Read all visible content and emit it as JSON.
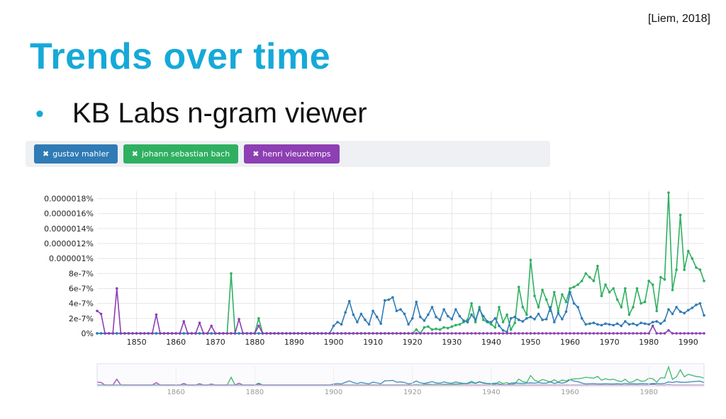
{
  "slide": {
    "citation": "[Liem, 2018]",
    "title": "Trends over time",
    "bullet": "KB Labs n-gram viewer"
  },
  "tags": [
    {
      "label": "gustav mahler",
      "remove_icon": "close-icon",
      "color": "#2f7bb6"
    },
    {
      "label": "johann sebastian bach",
      "remove_icon": "close-icon",
      "color": "#2fb061"
    },
    {
      "label": "henri vieuxtemps",
      "remove_icon": "close-icon",
      "color": "#8d3fb3"
    }
  ],
  "chart_data": {
    "type": "line",
    "xlim": [
      1840,
      1994
    ],
    "ylim": [
      0,
      1.9e-06
    ],
    "y_ticks": [
      0,
      2e-07,
      4e-07,
      6e-07,
      8e-07,
      1e-06,
      1.2e-06,
      1.4e-06,
      1.6e-06,
      1.8e-06
    ],
    "y_tick_labels": [
      "0%",
      "2e-7%",
      "4e-7%",
      "6e-7%",
      "8e-7%",
      "0.000001%",
      "0.0000012%",
      "0.0000014%",
      "0.0000016%",
      "0.0000018%"
    ],
    "x_ticks": [
      1850,
      1860,
      1870,
      1880,
      1890,
      1900,
      1910,
      1920,
      1930,
      1940,
      1950,
      1960,
      1970,
      1980,
      1990
    ],
    "x_tick_labels": [
      "1850",
      "1860",
      "1870",
      "1880",
      "1890",
      "1900",
      "1910",
      "1920",
      "1930",
      "1940",
      "1950",
      "1960",
      "1970",
      "1980",
      "1990"
    ],
    "navigator_ticks": [
      1860,
      1880,
      1900,
      1920,
      1940,
      1960,
      1980
    ],
    "navigator_tick_labels": [
      "1860",
      "1880",
      "1900",
      "1920",
      "1940",
      "1960",
      "1980"
    ],
    "grid": true,
    "series": [
      {
        "name": "gustav mahler",
        "color": "#2f7bb6",
        "points": [
          [
            1840,
            0
          ],
          [
            1899,
            0
          ],
          [
            1900,
            1e-07
          ],
          [
            1901,
            1.5e-07
          ],
          [
            1902,
            1.2e-07
          ],
          [
            1903,
            2.8e-07
          ],
          [
            1904,
            4.3e-07
          ],
          [
            1905,
            2.5e-07
          ],
          [
            1906,
            1.5e-07
          ],
          [
            1907,
            2.6e-07
          ],
          [
            1908,
            1.8e-07
          ],
          [
            1909,
            1.2e-07
          ],
          [
            1910,
            3e-07
          ],
          [
            1911,
            2.2e-07
          ],
          [
            1912,
            1.3e-07
          ],
          [
            1913,
            4.4e-07
          ],
          [
            1914,
            4.5e-07
          ],
          [
            1915,
            4.8e-07
          ],
          [
            1916,
            3e-07
          ],
          [
            1917,
            3.2e-07
          ],
          [
            1918,
            2.6e-07
          ],
          [
            1919,
            1.2e-07
          ],
          [
            1920,
            2e-07
          ],
          [
            1921,
            4.2e-07
          ],
          [
            1922,
            2.2e-07
          ],
          [
            1923,
            1.7e-07
          ],
          [
            1924,
            2.5e-07
          ],
          [
            1925,
            3.5e-07
          ],
          [
            1926,
            2.2e-07
          ],
          [
            1927,
            1.8e-07
          ],
          [
            1928,
            3.2e-07
          ],
          [
            1929,
            2.3e-07
          ],
          [
            1930,
            1.9e-07
          ],
          [
            1931,
            3.2e-07
          ],
          [
            1932,
            2.3e-07
          ],
          [
            1933,
            1.7e-07
          ],
          [
            1934,
            1.5e-07
          ],
          [
            1935,
            2.5e-07
          ],
          [
            1936,
            1.8e-07
          ],
          [
            1937,
            3.2e-07
          ],
          [
            1938,
            2.3e-07
          ],
          [
            1939,
            1.6e-07
          ],
          [
            1940,
            1.5e-07
          ],
          [
            1941,
            2e-07
          ],
          [
            1942,
            1e-07
          ],
          [
            1943,
            4e-08
          ],
          [
            1944,
            2e-08
          ],
          [
            1945,
            2e-07
          ],
          [
            1946,
            2.2e-07
          ],
          [
            1947,
            1.8e-07
          ],
          [
            1948,
            1.6e-07
          ],
          [
            1949,
            2e-07
          ],
          [
            1950,
            2.2e-07
          ],
          [
            1951,
            1.9e-07
          ],
          [
            1952,
            2.6e-07
          ],
          [
            1953,
            1.8e-07
          ],
          [
            1954,
            1.9e-07
          ],
          [
            1955,
            3.5e-07
          ],
          [
            1956,
            1.5e-07
          ],
          [
            1957,
            2.7e-07
          ],
          [
            1958,
            1.9e-07
          ],
          [
            1959,
            2.9e-07
          ],
          [
            1960,
            5.5e-07
          ],
          [
            1961,
            4e-07
          ],
          [
            1962,
            3.5e-07
          ],
          [
            1963,
            2e-07
          ],
          [
            1964,
            1.2e-07
          ],
          [
            1965,
            1.3e-07
          ],
          [
            1966,
            1.4e-07
          ],
          [
            1967,
            1.2e-07
          ],
          [
            1968,
            1.1e-07
          ],
          [
            1969,
            1.3e-07
          ],
          [
            1970,
            1.2e-07
          ],
          [
            1971,
            1.1e-07
          ],
          [
            1972,
            1.3e-07
          ],
          [
            1973,
            1e-07
          ],
          [
            1974,
            1.6e-07
          ],
          [
            1975,
            1.2e-07
          ],
          [
            1976,
            1.3e-07
          ],
          [
            1977,
            1.1e-07
          ],
          [
            1978,
            1.4e-07
          ],
          [
            1979,
            1.3e-07
          ],
          [
            1980,
            1.2e-07
          ],
          [
            1981,
            1.5e-07
          ],
          [
            1982,
            1.6e-07
          ],
          [
            1983,
            1.3e-07
          ],
          [
            1984,
            1.7e-07
          ],
          [
            1985,
            3.2e-07
          ],
          [
            1986,
            2.6e-07
          ],
          [
            1987,
            3.5e-07
          ],
          [
            1988,
            2.9e-07
          ],
          [
            1989,
            2.7e-07
          ],
          [
            1990,
            3.1e-07
          ],
          [
            1991,
            3.4e-07
          ],
          [
            1992,
            3.8e-07
          ],
          [
            1993,
            4e-07
          ],
          [
            1994,
            2.4e-07
          ]
        ]
      },
      {
        "name": "johann sebastian bach",
        "color": "#2fb061",
        "points": [
          [
            1840,
            0
          ],
          [
            1873,
            0
          ],
          [
            1874,
            8e-07
          ],
          [
            1875,
            0
          ],
          [
            1880,
            0
          ],
          [
            1881,
            2e-07
          ],
          [
            1882,
            0
          ],
          [
            1920,
            0
          ],
          [
            1921,
            5e-08
          ],
          [
            1922,
            0
          ],
          [
            1923,
            8e-08
          ],
          [
            1924,
            9e-08
          ],
          [
            1925,
            5e-08
          ],
          [
            1926,
            6e-08
          ],
          [
            1927,
            5e-08
          ],
          [
            1928,
            8e-08
          ],
          [
            1929,
            7e-08
          ],
          [
            1930,
            9e-08
          ],
          [
            1931,
            1.1e-07
          ],
          [
            1932,
            1.2e-07
          ],
          [
            1933,
            1.5e-07
          ],
          [
            1934,
            1.8e-07
          ],
          [
            1935,
            4e-07
          ],
          [
            1936,
            1.5e-07
          ],
          [
            1937,
            3.5e-07
          ],
          [
            1938,
            1.8e-07
          ],
          [
            1939,
            1.5e-07
          ],
          [
            1940,
            1.2e-07
          ],
          [
            1941,
            8e-08
          ],
          [
            1942,
            3.5e-07
          ],
          [
            1943,
            1.5e-07
          ],
          [
            1944,
            2.5e-07
          ],
          [
            1945,
            5e-08
          ],
          [
            1946,
            1.4e-07
          ],
          [
            1947,
            6.2e-07
          ],
          [
            1948,
            3.5e-07
          ],
          [
            1949,
            2.5e-07
          ],
          [
            1950,
            9.8e-07
          ],
          [
            1951,
            5e-07
          ],
          [
            1952,
            3.5e-07
          ],
          [
            1953,
            5.8e-07
          ],
          [
            1954,
            4.5e-07
          ],
          [
            1955,
            3e-07
          ],
          [
            1956,
            5.5e-07
          ],
          [
            1957,
            3e-07
          ],
          [
            1958,
            5.2e-07
          ],
          [
            1959,
            4.2e-07
          ],
          [
            1960,
            6e-07
          ],
          [
            1961,
            6.2e-07
          ],
          [
            1962,
            6.5e-07
          ],
          [
            1963,
            7e-07
          ],
          [
            1964,
            8e-07
          ],
          [
            1965,
            7.5e-07
          ],
          [
            1966,
            7e-07
          ],
          [
            1967,
            9e-07
          ],
          [
            1968,
            5e-07
          ],
          [
            1969,
            6.5e-07
          ],
          [
            1970,
            5.5e-07
          ],
          [
            1971,
            6e-07
          ],
          [
            1972,
            4.5e-07
          ],
          [
            1973,
            3.5e-07
          ],
          [
            1974,
            6e-07
          ],
          [
            1975,
            2.5e-07
          ],
          [
            1976,
            3.5e-07
          ],
          [
            1977,
            6e-07
          ],
          [
            1978,
            4e-07
          ],
          [
            1979,
            4.2e-07
          ],
          [
            1980,
            7e-07
          ],
          [
            1981,
            6.5e-07
          ],
          [
            1982,
            3e-07
          ],
          [
            1983,
            7.5e-07
          ],
          [
            1984,
            7.2e-07
          ],
          [
            1985,
            1.88e-06
          ],
          [
            1986,
            5.8e-07
          ],
          [
            1987,
            8.5e-07
          ],
          [
            1988,
            1.58e-06
          ],
          [
            1989,
            8.5e-07
          ],
          [
            1990,
            1.1e-06
          ],
          [
            1991,
            1e-06
          ],
          [
            1992,
            8.8e-07
          ],
          [
            1993,
            8.5e-07
          ],
          [
            1994,
            7e-07
          ]
        ]
      },
      {
        "name": "henri vieuxtemps",
        "color": "#8d3fb3",
        "points": [
          [
            1840,
            3e-07
          ],
          [
            1841,
            2.6e-07
          ],
          [
            1842,
            0
          ],
          [
            1844,
            0
          ],
          [
            1845,
            6e-07
          ],
          [
            1846,
            0
          ],
          [
            1854,
            0
          ],
          [
            1855,
            2.5e-07
          ],
          [
            1856,
            0
          ],
          [
            1861,
            0
          ],
          [
            1862,
            1.6e-07
          ],
          [
            1863,
            0
          ],
          [
            1865,
            0
          ],
          [
            1866,
            1.4e-07
          ],
          [
            1867,
            0
          ],
          [
            1868,
            0
          ],
          [
            1869,
            1e-07
          ],
          [
            1870,
            0
          ],
          [
            1875,
            0
          ],
          [
            1876,
            1.9e-07
          ],
          [
            1877,
            0
          ],
          [
            1880,
            0
          ],
          [
            1881,
            1e-07
          ],
          [
            1882,
            0
          ],
          [
            1980,
            0
          ],
          [
            1981,
            1e-07
          ],
          [
            1982,
            0
          ],
          [
            1984,
            0
          ],
          [
            1985,
            4e-08
          ],
          [
            1986,
            0
          ],
          [
            1994,
            0
          ]
        ]
      }
    ]
  }
}
